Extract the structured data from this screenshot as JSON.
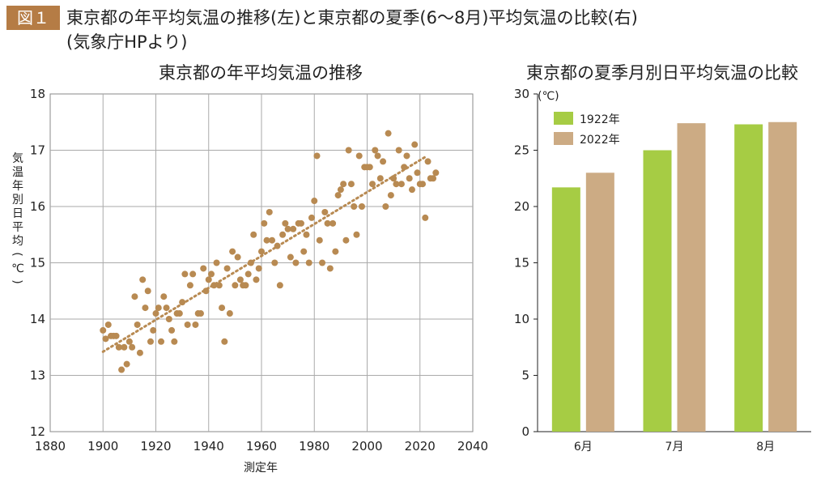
{
  "header": {
    "badge": "図１",
    "title": "東京都の年平均気温の推移(左)と東京都の夏季(6〜8月)平均気温の比較(右)",
    "source": "(気象庁HPより)"
  },
  "colors": {
    "badge": "#b57c45",
    "dot": "#b88a52",
    "trend": "#b88a52",
    "bar1922": "#a6cc44",
    "bar2022": "#ccab84"
  },
  "chart_data": [
    {
      "type": "scatter",
      "title": "東京都の年平均気温の推移",
      "xlabel": "測定年",
      "ylabel": "気温年別日平均(℃)",
      "xlim": [
        1880,
        2040
      ],
      "ylim": [
        12,
        18
      ],
      "xticks": [
        "1880",
        "1900",
        "1920",
        "1940",
        "1960",
        "1980",
        "2000",
        "2020",
        "2040"
      ],
      "yticks": [
        "12",
        "13",
        "14",
        "15",
        "16",
        "17",
        "18"
      ],
      "grid": true,
      "trendline": {
        "style": "dotted",
        "x": [
          1900,
          2022
        ],
        "y": [
          13.42,
          16.88
        ]
      },
      "points": [
        [
          1900,
          13.8
        ],
        [
          1901,
          13.65
        ],
        [
          1902,
          13.9
        ],
        [
          1903,
          13.7
        ],
        [
          1904,
          13.7
        ],
        [
          1905,
          13.7
        ],
        [
          1906,
          13.5
        ],
        [
          1907,
          13.1
        ],
        [
          1908,
          13.5
        ],
        [
          1909,
          13.2
        ],
        [
          1910,
          13.6
        ],
        [
          1911,
          13.5
        ],
        [
          1912,
          14.4
        ],
        [
          1913,
          13.9
        ],
        [
          1914,
          13.4
        ],
        [
          1915,
          14.7
        ],
        [
          1916,
          14.2
        ],
        [
          1917,
          14.5
        ],
        [
          1918,
          13.6
        ],
        [
          1919,
          13.8
        ],
        [
          1920,
          14.1
        ],
        [
          1921,
          14.2
        ],
        [
          1922,
          13.6
        ],
        [
          1923,
          14.4
        ],
        [
          1924,
          14.2
        ],
        [
          1925,
          14.0
        ],
        [
          1926,
          13.8
        ],
        [
          1927,
          13.6
        ],
        [
          1928,
          14.1
        ],
        [
          1929,
          14.1
        ],
        [
          1930,
          14.3
        ],
        [
          1931,
          14.8
        ],
        [
          1932,
          13.9
        ],
        [
          1933,
          14.6
        ],
        [
          1934,
          14.8
        ],
        [
          1935,
          13.9
        ],
        [
          1936,
          14.1
        ],
        [
          1937,
          14.1
        ],
        [
          1938,
          14.9
        ],
        [
          1939,
          14.5
        ],
        [
          1940,
          14.7
        ],
        [
          1941,
          14.8
        ],
        [
          1942,
          14.6
        ],
        [
          1943,
          15.0
        ],
        [
          1944,
          14.6
        ],
        [
          1945,
          14.2
        ],
        [
          1946,
          13.6
        ],
        [
          1947,
          14.9
        ],
        [
          1948,
          14.1
        ],
        [
          1949,
          15.2
        ],
        [
          1950,
          14.6
        ],
        [
          1951,
          15.1
        ],
        [
          1952,
          14.7
        ],
        [
          1953,
          14.6
        ],
        [
          1954,
          14.6
        ],
        [
          1955,
          14.8
        ],
        [
          1956,
          15.0
        ],
        [
          1957,
          15.5
        ],
        [
          1958,
          14.7
        ],
        [
          1959,
          14.9
        ],
        [
          1960,
          15.2
        ],
        [
          1961,
          15.7
        ],
        [
          1962,
          15.4
        ],
        [
          1963,
          15.9
        ],
        [
          1964,
          15.4
        ],
        [
          1965,
          15.0
        ],
        [
          1966,
          15.3
        ],
        [
          1967,
          14.6
        ],
        [
          1968,
          15.5
        ],
        [
          1969,
          15.7
        ],
        [
          1970,
          15.6
        ],
        [
          1971,
          15.1
        ],
        [
          1972,
          15.6
        ],
        [
          1973,
          15.0
        ],
        [
          1974,
          15.7
        ],
        [
          1975,
          15.7
        ],
        [
          1976,
          15.2
        ],
        [
          1977,
          15.5
        ],
        [
          1978,
          15.0
        ],
        [
          1979,
          15.8
        ],
        [
          1980,
          16.1
        ],
        [
          1981,
          16.9
        ],
        [
          1982,
          15.4
        ],
        [
          1983,
          15.0
        ],
        [
          1984,
          15.9
        ],
        [
          1985,
          15.7
        ],
        [
          1986,
          14.9
        ],
        [
          1987,
          15.7
        ],
        [
          1988,
          15.2
        ],
        [
          1989,
          16.2
        ],
        [
          1990,
          16.3
        ],
        [
          1991,
          16.4
        ],
        [
          1992,
          15.4
        ],
        [
          1993,
          17.0
        ],
        [
          1994,
          16.4
        ],
        [
          1995,
          16.0
        ],
        [
          1996,
          15.5
        ],
        [
          1997,
          16.9
        ],
        [
          1998,
          16.0
        ],
        [
          1999,
          16.7
        ],
        [
          2000,
          16.7
        ],
        [
          2001,
          16.7
        ],
        [
          2002,
          16.4
        ],
        [
          2003,
          17.0
        ],
        [
          2004,
          16.9
        ],
        [
          2005,
          16.5
        ],
        [
          2006,
          16.8
        ],
        [
          2007,
          16.0
        ],
        [
          2008,
          17.3
        ],
        [
          2009,
          16.2
        ],
        [
          2010,
          16.5
        ],
        [
          2011,
          16.4
        ],
        [
          2012,
          17.0
        ],
        [
          2013,
          16.4
        ],
        [
          2014,
          16.7
        ],
        [
          2015,
          16.9
        ],
        [
          2016,
          16.5
        ],
        [
          2017,
          16.3
        ],
        [
          2018,
          17.1
        ],
        [
          2019,
          16.6
        ],
        [
          2020,
          16.4
        ],
        [
          2021,
          16.4
        ],
        [
          2022,
          15.8
        ],
        [
          2023,
          16.8
        ],
        [
          2024,
          16.5
        ],
        [
          2025,
          16.5
        ],
        [
          2026,
          16.6
        ]
      ]
    },
    {
      "type": "bar",
      "title": "東京都の夏季月別日平均気温の比較",
      "ylabel": "(℃)",
      "categories": [
        "6月",
        "7月",
        "8月"
      ],
      "ylim": [
        0,
        30
      ],
      "yticks": [
        "0",
        "5",
        "10",
        "15",
        "20",
        "25",
        "30"
      ],
      "legend": "top-left",
      "series": [
        {
          "name": "1922年",
          "values": [
            21.7,
            25.0,
            27.3
          ]
        },
        {
          "name": "2022年",
          "values": [
            23.0,
            27.4,
            27.5
          ]
        }
      ]
    }
  ]
}
